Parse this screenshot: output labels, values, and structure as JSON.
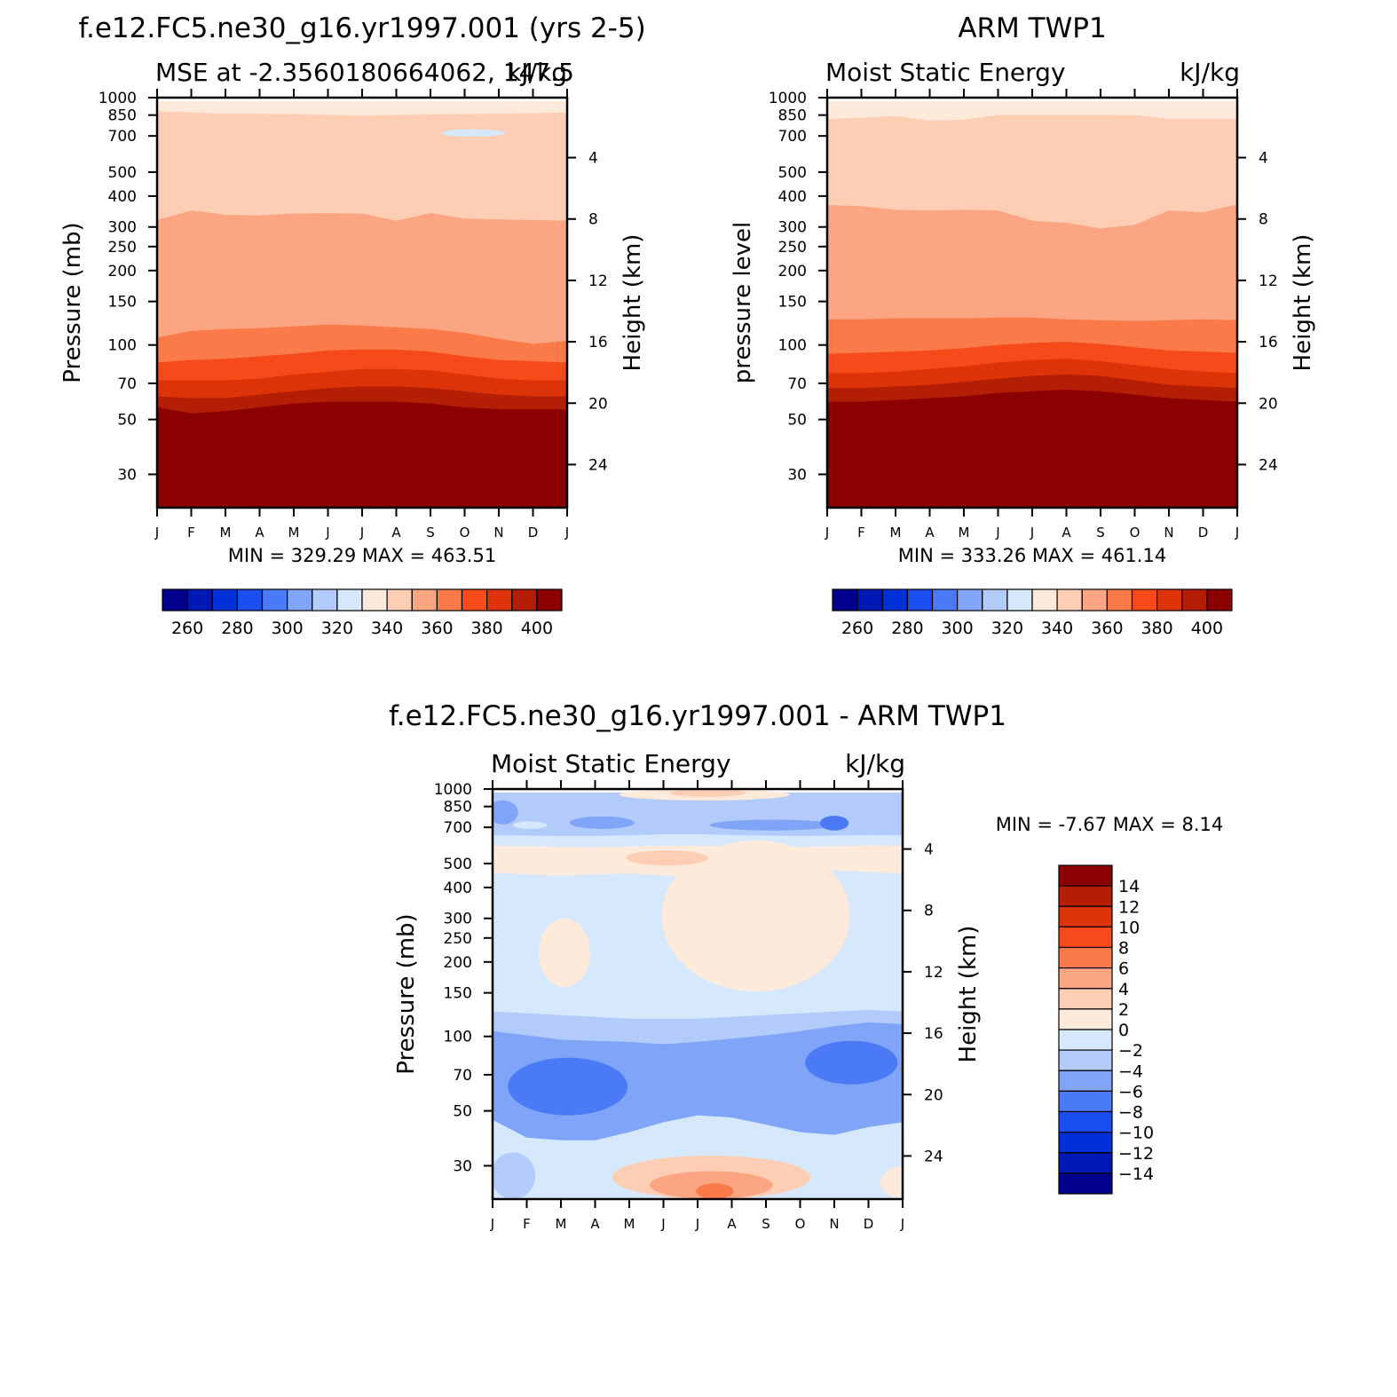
{
  "colors": {
    "colormap": [
      "#00008c",
      "#0019b4",
      "#0030d8",
      "#1a4ef0",
      "#4a7af5",
      "#7fa4f8",
      "#b3cbfb",
      "#d6e8fc",
      "#feeadb",
      "#fdcdb4",
      "#fca583",
      "#fb7a49",
      "#f74a1a",
      "#dc3308",
      "#b41e04",
      "#8b0000"
    ]
  },
  "panels": [
    {
      "id": "model",
      "title": "f.e12.FC5.ne30_g16.yr1997.001 (yrs 2-5)",
      "subtitle_left": "MSE at -2.3560180664062, 147.5",
      "subtitle_right": "kJ/kg",
      "ylabel": "Pressure (mb)",
      "ylabel_right": "Height (km)",
      "minmax": "MIN = 329.29  MAX = 463.51"
    },
    {
      "id": "obs",
      "title": "ARM TWP1",
      "subtitle_left": "Moist Static Energy",
      "subtitle_right": "kJ/kg",
      "ylabel": "pressure level",
      "ylabel_right": "Height (km)",
      "minmax": "MIN = 333.26  MAX = 461.14"
    },
    {
      "id": "diff",
      "title": "f.e12.FC5.ne30_g16.yr1997.001 - ARM TWP1",
      "subtitle_left": "Moist Static Energy",
      "subtitle_right": "kJ/kg",
      "ylabel": "Pressure (mb)",
      "ylabel_right": "Height (km)",
      "minmax": "MIN =   -7.67 MAX =     8.14"
    }
  ],
  "chart_data": [
    {
      "type": "heatmap",
      "name": "model",
      "title": "f.e12.FC5.ne30_g16.yr1997.001 (yrs 2-5)",
      "x_ticks": [
        "J",
        "F",
        "M",
        "A",
        "M",
        "J",
        "J",
        "A",
        "S",
        "O",
        "N",
        "D",
        "J"
      ],
      "y_ticks": [
        30,
        50,
        70,
        100,
        150,
        200,
        250,
        300,
        400,
        500,
        700,
        850,
        1000
      ],
      "y2_ticks": [
        24,
        20,
        16,
        12,
        8,
        4
      ],
      "ylim_mb": [
        1000,
        22
      ],
      "levels": [
        260,
        270,
        280,
        290,
        300,
        310,
        320,
        330,
        340,
        350,
        360,
        370,
        380,
        390,
        400
      ],
      "colorbar_labels": [
        "260",
        "280",
        "300",
        "320",
        "340",
        "360",
        "380",
        "400"
      ],
      "bands": [
        {
          "value": 405,
          "top_mb": [
            22,
            22,
            22,
            22,
            22,
            22,
            22,
            22,
            22,
            22,
            22,
            22,
            22
          ]
        },
        {
          "value": 395,
          "top_mb": [
            56,
            53,
            54,
            56,
            58,
            59,
            59,
            59,
            58,
            56,
            55,
            55,
            55
          ]
        },
        {
          "value": 385,
          "top_mb": [
            62,
            61,
            61,
            63,
            65,
            67,
            68,
            68,
            67,
            65,
            63,
            62,
            62
          ]
        },
        {
          "value": 375,
          "top_mb": [
            72,
            72,
            72,
            73,
            76,
            78,
            80,
            80,
            79,
            76,
            73,
            72,
            72
          ]
        },
        {
          "value": 365,
          "top_mb": [
            85,
            87,
            88,
            90,
            92,
            95,
            96,
            96,
            94,
            90,
            87,
            86,
            85
          ]
        },
        {
          "value": 355,
          "top_mb": [
            107,
            114,
            116,
            117,
            119,
            121,
            120,
            118,
            116,
            112,
            106,
            101,
            104
          ]
        },
        {
          "value": 345,
          "top_mb": [
            320,
            350,
            336,
            334,
            340,
            341,
            340,
            318,
            342,
            324,
            322,
            320,
            318
          ]
        },
        {
          "value": 335,
          "top_mb": [
            880,
            872,
            860,
            860,
            858,
            852,
            848,
            852,
            856,
            858,
            862,
            866,
            870
          ]
        }
      ],
      "blobs": [
        {
          "value": 325,
          "center": [
            9.25,
            720
          ],
          "month_halfwidth": 0.95,
          "mb_range": [
            695,
            745
          ]
        }
      ],
      "min": 329.29,
      "max": 463.51
    },
    {
      "type": "heatmap",
      "name": "obs",
      "title": "ARM TWP1",
      "x_ticks": [
        "J",
        "F",
        "M",
        "A",
        "M",
        "J",
        "J",
        "A",
        "S",
        "O",
        "N",
        "D",
        "J"
      ],
      "y_ticks": [
        30,
        50,
        70,
        100,
        150,
        200,
        250,
        300,
        400,
        500,
        700,
        850,
        1000
      ],
      "y2_ticks": [
        24,
        20,
        16,
        12,
        8,
        4
      ],
      "ylim_mb": [
        1000,
        22
      ],
      "levels": [
        260,
        270,
        280,
        290,
        300,
        310,
        320,
        330,
        340,
        350,
        360,
        370,
        380,
        390,
        400
      ],
      "colorbar_labels": [
        "260",
        "280",
        "300",
        "320",
        "340",
        "360",
        "380",
        "400"
      ],
      "bands": [
        {
          "value": 405,
          "top_mb": [
            22,
            22,
            22,
            22,
            22,
            22,
            22,
            22,
            22,
            22,
            22,
            22,
            22
          ]
        },
        {
          "value": 395,
          "top_mb": [
            59,
            59,
            60,
            61,
            62,
            64,
            65,
            66,
            65,
            63,
            61,
            60,
            59
          ]
        },
        {
          "value": 385,
          "top_mb": [
            67,
            67,
            68,
            69,
            71,
            73,
            75,
            76,
            75,
            72,
            69,
            68,
            67
          ]
        },
        {
          "value": 375,
          "top_mb": [
            77,
            77,
            78,
            80,
            82,
            85,
            87,
            88,
            86,
            83,
            80,
            78,
            77
          ]
        },
        {
          "value": 365,
          "top_mb": [
            92,
            93,
            94,
            95,
            97,
            100,
            102,
            103,
            101,
            98,
            95,
            94,
            93
          ]
        },
        {
          "value": 355,
          "top_mb": [
            127,
            127,
            128,
            128,
            128,
            129,
            129,
            127,
            126,
            125,
            126,
            127,
            126
          ]
        },
        {
          "value": 345,
          "top_mb": [
            368,
            364,
            352,
            350,
            352,
            350,
            318,
            312,
            296,
            306,
            350,
            344,
            370
          ]
        },
        {
          "value": 335,
          "top_mb": [
            820,
            830,
            842,
            808,
            814,
            852,
            852,
            852,
            852,
            850,
            820,
            820,
            822
          ]
        }
      ],
      "blobs": [],
      "min": 333.26,
      "max": 461.14
    },
    {
      "type": "heatmap",
      "name": "difference",
      "title": "f.e12.FC5.ne30_g16.yr1997.001 - ARM TWP1",
      "x_ticks": [
        "J",
        "F",
        "M",
        "A",
        "M",
        "J",
        "J",
        "A",
        "S",
        "O",
        "N",
        "D",
        "J"
      ],
      "y_ticks": [
        30,
        50,
        70,
        100,
        150,
        200,
        250,
        300,
        400,
        500,
        700,
        850,
        1000
      ],
      "y2_ticks": [
        24,
        20,
        16,
        12,
        8,
        4
      ],
      "ylim_mb": [
        1000,
        22
      ],
      "levels": [
        -14,
        -12,
        -10,
        -8,
        -6,
        -4,
        -2,
        0,
        2,
        4,
        6,
        8,
        10,
        12,
        14
      ],
      "colorbar_labels": [
        "14",
        "12",
        "10",
        "8",
        "6",
        "4",
        "2",
        "0",
        "-2",
        "-4",
        "-6",
        "-8",
        "-10",
        "-12",
        "-14"
      ],
      "bands": [
        {
          "value": -1,
          "top_mb": [
            22,
            22,
            22,
            22,
            22,
            22,
            22,
            22,
            22,
            22,
            22,
            22,
            22
          ]
        },
        {
          "value": -5,
          "top_mb": [
            46,
            39,
            38,
            38,
            41,
            45,
            48,
            47,
            44,
            41,
            40,
            43,
            45
          ]
        },
        {
          "value": -3,
          "top_mb": [
            105,
            101,
            97,
            96,
            95,
            93,
            95,
            98,
            101,
            105,
            110,
            114,
            112
          ]
        },
        {
          "value": -1,
          "top_mb": [
            126,
            124,
            122,
            120,
            118,
            118,
            118,
            120,
            122,
            124,
            126,
            128,
            126
          ]
        },
        {
          "value": 1,
          "top_mb": [
            460,
            452,
            448,
            452,
            456,
            448,
            440,
            444,
            448,
            452,
            470,
            462,
            456
          ]
        },
        {
          "value": -1,
          "top_mb": [
            590,
            588,
            584,
            582,
            586,
            590,
            590,
            588,
            586,
            584,
            588,
            592,
            590
          ]
        },
        {
          "value": -3,
          "top_mb": [
            650,
            648,
            646,
            646,
            650,
            656,
            656,
            652,
            648,
            646,
            648,
            652,
            650
          ]
        }
      ],
      "blobs": [
        {
          "value": 3,
          "center": [
            6.4,
            26
          ],
          "month_halfwidth": 2.9,
          "mb_range": [
            22,
            33
          ]
        },
        {
          "value": 5,
          "center": [
            6.4,
            24
          ],
          "month_halfwidth": 1.8,
          "mb_range": [
            22,
            28.5
          ]
        },
        {
          "value": 7,
          "center": [
            6.5,
            23
          ],
          "month_halfwidth": 0.55,
          "mb_range": [
            22,
            25.5
          ]
        },
        {
          "value": 1,
          "center": [
            12.1,
            27
          ],
          "month_halfwidth": 0.75,
          "mb_range": [
            22,
            30
          ]
        },
        {
          "value": -3,
          "center": [
            0.6,
            27
          ],
          "month_halfwidth": 0.65,
          "mb_range": [
            22,
            34
          ]
        },
        {
          "value": -7,
          "center": [
            2.2,
            62
          ],
          "month_halfwidth": 1.75,
          "mb_range": [
            48,
            82
          ]
        },
        {
          "value": -7,
          "center": [
            10.5,
            77
          ],
          "month_halfwidth": 1.35,
          "mb_range": [
            64,
            96
          ]
        },
        {
          "value": 1,
          "center": [
            2.1,
            205
          ],
          "month_halfwidth": 0.75,
          "mb_range": [
            158,
            300
          ]
        },
        {
          "value": 1,
          "center": [
            7.7,
            240
          ],
          "month_halfwidth": 2.75,
          "mb_range": [
            152,
            620
          ]
        },
        {
          "value": 3,
          "center": [
            5.1,
            520
          ],
          "month_halfwidth": 1.2,
          "mb_range": [
            490,
            565
          ]
        },
        {
          "value": -5,
          "center": [
            3.2,
            728
          ],
          "month_halfwidth": 0.95,
          "mb_range": [
            690,
            775
          ]
        },
        {
          "value": -5,
          "center": [
            8.2,
            712
          ],
          "month_halfwidth": 1.85,
          "mb_range": [
            680,
            752
          ]
        },
        {
          "value": -7,
          "center": [
            10.0,
            725
          ],
          "month_halfwidth": 0.42,
          "mb_range": [
            680,
            780
          ]
        },
        {
          "value": -5,
          "center": [
            0.3,
            800
          ],
          "month_halfwidth": 0.45,
          "mb_range": [
            720,
            900
          ]
        },
        {
          "value": -1,
          "center": [
            1.1,
            712
          ],
          "month_halfwidth": 0.5,
          "mb_range": [
            690,
            740
          ]
        },
        {
          "value": 1,
          "center": [
            6.2,
            945
          ],
          "month_halfwidth": 2.5,
          "mb_range": [
            900,
            1000
          ]
        },
        {
          "value": 3,
          "center": [
            6.3,
            965
          ],
          "month_halfwidth": 1.1,
          "mb_range": [
            930,
            1000
          ]
        }
      ],
      "min": -7.67,
      "max": 8.14
    }
  ]
}
